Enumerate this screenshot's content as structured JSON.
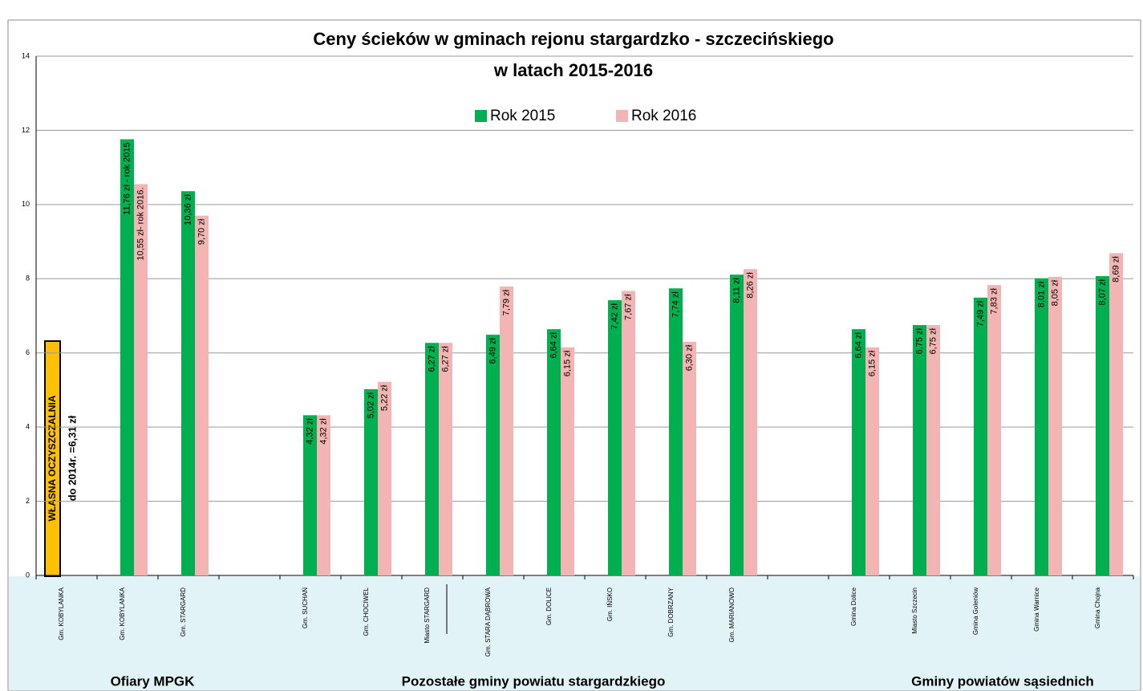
{
  "chart_data": {
    "type": "bar",
    "title": [
      "Ceny ścieków w gminach rejonu stargardzko - szczecińskiego",
      "w latach 2015-2016"
    ],
    "categories": [
      "Gm. KOBYLANKA",
      "Gm. KOBYLANKA",
      "Gm. STARGARD",
      null,
      "Gm. SUCHAŃ",
      "Gm. CHOCIWEL",
      "Miasto STARGARD",
      "Gm. STARA DĄBROWA",
      "Gm. DOLICE",
      "Gm. IŃSKO",
      "Gm. DOBRZANY",
      "Gm. MARIANOWO",
      null,
      "Gmina Dolice",
      "Miasto Szczecin",
      "Gmina Goleniów",
      "Gmina Warnice",
      "Gmina Chojna"
    ],
    "series": [
      {
        "name": "Rok 2015",
        "color": "#00b050",
        "values": [
          null,
          11.76,
          10.36,
          null,
          4.32,
          5.02,
          6.27,
          6.49,
          6.64,
          7.42,
          7.74,
          8.11,
          null,
          6.64,
          6.75,
          7.49,
          8.01,
          8.07
        ],
        "value_labels": [
          null,
          "11,76 zł - rok 2015",
          "10,36 zł",
          null,
          "4,32 zł",
          "5,02 zł",
          "6,27 zł",
          "6,49 zł",
          "6,64 zł",
          "7,42 zł",
          "7,74 zł",
          "8,11 zł",
          null,
          "6,64 zł",
          "6,75 zł",
          "7,49 zł",
          "8,01 zł",
          "8,07 zł"
        ]
      },
      {
        "name": "Rok 2016",
        "color": "#f2b5b3",
        "values": [
          null,
          10.55,
          9.7,
          null,
          4.32,
          5.22,
          6.27,
          7.79,
          6.15,
          7.67,
          6.3,
          8.26,
          null,
          6.15,
          6.75,
          7.83,
          8.05,
          8.69
        ],
        "value_labels": [
          null,
          "10,55 zł- rok 2016.",
          "9,70 zł",
          null,
          "4,32 zł",
          "5,22 zł",
          "6,27 zł",
          "7,79 zł",
          "6,15 zł",
          "7,67 zł",
          "6,30 zł",
          "8,26 zł",
          null,
          "6,15 zł",
          "6,75 zł",
          "7,83 zł",
          "8,05 zł",
          "8,69 zł"
        ]
      }
    ],
    "ylim": [
      0,
      14
    ],
    "yticks": [
      0,
      2,
      4,
      6,
      8,
      10,
      12,
      14
    ],
    "grid": true,
    "legend": "top",
    "annotations": [
      "WŁASNA OCZYSZCZALNIA",
      "do 2014r. =6,31 zł"
    ],
    "group_labels": [
      "Ofiary MPGK",
      "Pozostałe gminy powiatu stargardzkiego",
      "Gminy powiatów sąsiednich"
    ]
  }
}
